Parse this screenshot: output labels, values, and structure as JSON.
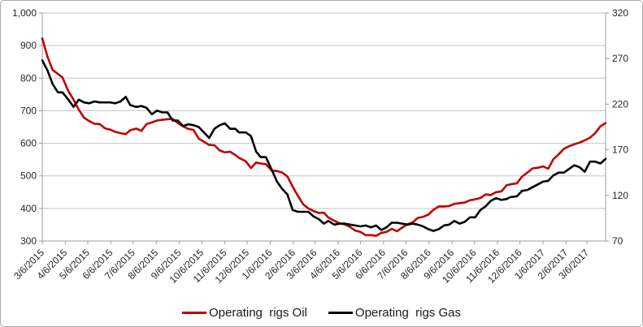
{
  "chart_data": {
    "type": "line",
    "title": "",
    "xlabel": "",
    "ylabel_left": "",
    "ylabel_right": "",
    "grid": true,
    "legend_position": "bottom",
    "left_axis": {
      "min": 300,
      "max": 1000,
      "step": 100,
      "ticks": [
        {
          "label": "1,000",
          "v": 1000
        },
        {
          "label": "900",
          "v": 900
        },
        {
          "label": "800",
          "v": 800
        },
        {
          "label": "700",
          "v": 700
        },
        {
          "label": "600",
          "v": 600
        },
        {
          "label": "500",
          "v": 500
        },
        {
          "label": "400",
          "v": 400
        },
        {
          "label": "300",
          "v": 300
        }
      ]
    },
    "right_axis": {
      "min": 70,
      "max": 320,
      "step": 50,
      "ticks": [
        {
          "label": "320",
          "v": 320
        },
        {
          "label": "270",
          "v": 270
        },
        {
          "label": "220",
          "v": 220
        },
        {
          "label": "170",
          "v": 170
        },
        {
          "label": "120",
          "v": 120
        },
        {
          "label": "70",
          "v": 70
        }
      ]
    },
    "x_tick_labels": [
      "3/6/2015",
      "4/6/2015",
      "5/6/2015",
      "6/6/2015",
      "7/6/2015",
      "8/6/2015",
      "9/6/2015",
      "10/6/2015",
      "11/6/2015",
      "12/6/2015",
      "1/6/2016",
      "2/6/2016",
      "3/6/2016",
      "4/6/2016",
      "5/6/2016",
      "6/6/2016",
      "7/6/2016",
      "8/6/2016",
      "9/6/2016",
      "10/6/2016",
      "11/6/2016",
      "12/6/2016",
      "1/6/2017",
      "2/6/2017",
      "3/6/2017"
    ],
    "x_dates": [
      "3/6/2015",
      "3/13/2015",
      "3/20/2015",
      "3/27/2015",
      "4/2/2015",
      "4/10/2015",
      "4/17/2015",
      "4/24/2015",
      "5/1/2015",
      "5/8/2015",
      "5/15/2015",
      "5/22/2015",
      "5/29/2015",
      "6/5/2015",
      "6/12/2015",
      "6/19/2015",
      "6/26/2015",
      "7/2/2015",
      "7/10/2015",
      "7/17/2015",
      "7/24/2015",
      "7/31/2015",
      "8/7/2015",
      "8/14/2015",
      "8/21/2015",
      "8/28/2015",
      "9/4/2015",
      "9/11/2015",
      "9/18/2015",
      "9/25/2015",
      "10/2/2015",
      "10/9/2015",
      "10/16/2015",
      "10/23/2015",
      "10/30/2015",
      "11/6/2015",
      "11/13/2015",
      "11/20/2015",
      "11/25/2015",
      "12/4/2015",
      "12/11/2015",
      "12/18/2015",
      "12/24/2015",
      "12/31/2015",
      "1/8/2016",
      "1/15/2016",
      "1/22/2016",
      "1/29/2016",
      "2/5/2016",
      "2/12/2016",
      "2/19/2016",
      "2/26/2016",
      "3/4/2016",
      "3/11/2016",
      "3/18/2016",
      "3/24/2016",
      "4/1/2016",
      "4/8/2016",
      "4/15/2016",
      "4/22/2016",
      "4/29/2016",
      "5/6/2016",
      "5/13/2016",
      "5/20/2016",
      "5/27/2016",
      "6/3/2016",
      "6/10/2016",
      "6/17/2016",
      "6/24/2016",
      "7/1/2016",
      "7/8/2016",
      "7/15/2016",
      "7/22/2016",
      "7/29/2016",
      "8/5/2016",
      "8/12/2016",
      "8/19/2016",
      "8/26/2016",
      "9/2/2016",
      "9/9/2016",
      "9/16/2016",
      "9/23/2016",
      "9/30/2016",
      "10/7/2016",
      "10/14/2016",
      "10/21/2016",
      "10/28/2016",
      "11/4/2016",
      "11/11/2016",
      "11/18/2016",
      "11/23/2016",
      "12/2/2016",
      "12/9/2016",
      "12/16/2016",
      "12/23/2016",
      "12/30/2016",
      "1/6/2017",
      "1/13/2017",
      "1/20/2017",
      "1/27/2017",
      "2/3/2017",
      "2/10/2017",
      "2/17/2017",
      "2/24/2017",
      "3/3/2017",
      "3/10/2017",
      "3/17/2017",
      "3/24/2017",
      "3/31/2017"
    ],
    "series": [
      {
        "name": "Operating  rigs Oil",
        "axis": "left",
        "color": "#C00000",
        "values": [
          922,
          866,
          825,
          813,
          802,
          760,
          734,
          703,
          679,
          668,
          660,
          659,
          646,
          642,
          635,
          631,
          628,
          640,
          645,
          638,
          659,
          664,
          670,
          672,
          674,
          675,
          662,
          652,
          644,
          641,
          614,
          605,
          595,
          594,
          578,
          572,
          574,
          564,
          555,
          545,
          524,
          541,
          538,
          536,
          516,
          515,
          510,
          498,
          467,
          439,
          413,
          400,
          392,
          386,
          387,
          372,
          362,
          354,
          351,
          343,
          332,
          328,
          318,
          318,
          316,
          325,
          328,
          337,
          330,
          341,
          351,
          357,
          371,
          374,
          381,
          396,
          406,
          406,
          407,
          414,
          416,
          418,
          425,
          428,
          432,
          443,
          441,
          450,
          452,
          471,
          474,
          477,
          498,
          510,
          523,
          525,
          529,
          522,
          551,
          566,
          583,
          591,
          597,
          602,
          609,
          617,
          631,
          652,
          662
        ]
      },
      {
        "name": "Operating  rigs Gas",
        "axis": "right",
        "color": "#000000",
        "values": [
          268,
          257,
          242,
          233,
          233,
          225,
          217,
          225,
          222,
          221,
          223,
          222,
          222,
          222,
          221,
          223,
          228,
          219,
          217,
          218,
          216,
          209,
          213,
          211,
          211,
          202,
          202,
          196,
          198,
          197,
          195,
          189,
          183,
          193,
          197,
          199,
          193,
          193,
          189,
          189,
          185,
          168,
          162,
          162,
          148,
          135,
          127,
          121,
          104,
          102,
          102,
          102,
          97,
          94,
          89,
          92,
          88,
          89,
          89,
          88,
          87,
          86,
          87,
          85,
          87,
          82,
          85,
          90,
          90,
          89,
          88,
          89,
          88,
          86,
          83,
          81,
          83,
          87,
          88,
          92,
          89,
          91,
          96,
          96,
          104,
          108,
          114,
          117,
          115,
          116,
          118,
          119,
          125,
          126,
          129,
          132,
          135,
          136,
          142,
          145,
          145,
          149,
          153,
          151,
          146,
          157,
          157,
          155,
          160
        ]
      }
    ],
    "style": {
      "gridline_color": "#c3c3c3",
      "axis_color": "#9d9d9d",
      "text_color": "#262626",
      "line_width": 2.6
    }
  }
}
